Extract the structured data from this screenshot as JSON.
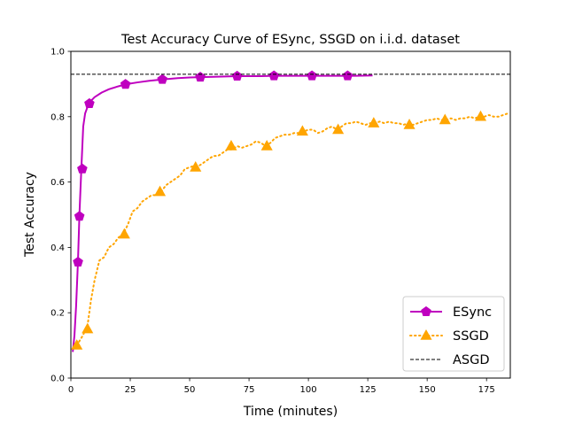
{
  "chart_data": {
    "type": "line",
    "title": "Test Accuracy Curve of ESync, SSGD on i.i.d. dataset",
    "xlabel": "Time (minutes)",
    "ylabel": "Test Accuracy",
    "xlim": [
      0,
      185
    ],
    "ylim": [
      0.0,
      1.0
    ],
    "xticks": [
      "0",
      "25",
      "50",
      "75",
      "100",
      "125",
      "150",
      "175"
    ],
    "yticks": [
      "0.0",
      "0.2",
      "0.4",
      "0.6",
      "0.8",
      "1.0"
    ],
    "grid": false,
    "legend_position": "lower-right",
    "series": [
      {
        "name": "ESync",
        "color": "#bf00bf",
        "style": "solid",
        "marker": "pentagon",
        "x": [
          0.8,
          1.5,
          2.2,
          3.0,
          3.6,
          4.4,
          5.2,
          6.0,
          7.0,
          8.0,
          10,
          13,
          16,
          20,
          23,
          28,
          33,
          38.5,
          45,
          50,
          54.5,
          60,
          65,
          70,
          75,
          80,
          85.5,
          90,
          95,
          101.5,
          105,
          110,
          116.5,
          120,
          127
        ],
        "y": [
          0.08,
          0.13,
          0.22,
          0.36,
          0.5,
          0.64,
          0.77,
          0.81,
          0.83,
          0.845,
          0.86,
          0.874,
          0.884,
          0.893,
          0.899,
          0.905,
          0.91,
          0.914,
          0.918,
          0.92,
          0.921,
          0.922,
          0.923,
          0.924,
          0.924,
          0.924,
          0.925,
          0.925,
          0.925,
          0.925,
          0.925,
          0.925,
          0.925,
          0.925,
          0.926
        ],
        "marker_x": [
          3.0,
          3.6,
          4.8,
          7.8,
          23,
          38.5,
          54.5,
          70,
          85.5,
          101.5,
          116.5
        ],
        "marker_y": [
          0.355,
          0.495,
          0.64,
          0.84,
          0.899,
          0.914,
          0.921,
          0.924,
          0.925,
          0.925,
          0.925
        ]
      },
      {
        "name": "SSGD",
        "color": "#ffa500",
        "style": "dotted",
        "marker": "triangle",
        "x": [
          2.5,
          5,
          7,
          8.5,
          10,
          12,
          14,
          16,
          18,
          20,
          22,
          24,
          26,
          28,
          30,
          32,
          34,
          36,
          38,
          40,
          42,
          44,
          46,
          48,
          50,
          52,
          54,
          56,
          58,
          60,
          62,
          64,
          66,
          68,
          70,
          72,
          74,
          76,
          78,
          80,
          82,
          84,
          86,
          88,
          90,
          92,
          94,
          96,
          98,
          100,
          102,
          104,
          106,
          108,
          110,
          112,
          114,
          116,
          118,
          120,
          122,
          124,
          126,
          128,
          130,
          132,
          134,
          136,
          138,
          140,
          142,
          144,
          146,
          148,
          150,
          152,
          154,
          156,
          158,
          160,
          162,
          164,
          166,
          168,
          170,
          172,
          174,
          176,
          178,
          180,
          182,
          184
        ],
        "y": [
          0.1,
          0.13,
          0.16,
          0.24,
          0.3,
          0.36,
          0.37,
          0.4,
          0.41,
          0.43,
          0.44,
          0.47,
          0.51,
          0.52,
          0.54,
          0.55,
          0.56,
          0.56,
          0.57,
          0.59,
          0.6,
          0.61,
          0.62,
          0.64,
          0.645,
          0.65,
          0.65,
          0.66,
          0.67,
          0.68,
          0.68,
          0.69,
          0.7,
          0.7,
          0.71,
          0.705,
          0.71,
          0.715,
          0.725,
          0.72,
          0.71,
          0.72,
          0.735,
          0.74,
          0.745,
          0.745,
          0.75,
          0.75,
          0.755,
          0.76,
          0.76,
          0.75,
          0.755,
          0.765,
          0.77,
          0.76,
          0.77,
          0.78,
          0.78,
          0.785,
          0.78,
          0.775,
          0.78,
          0.78,
          0.785,
          0.78,
          0.785,
          0.78,
          0.78,
          0.775,
          0.78,
          0.775,
          0.78,
          0.785,
          0.79,
          0.79,
          0.795,
          0.79,
          0.79,
          0.795,
          0.79,
          0.795,
          0.795,
          0.8,
          0.795,
          0.8,
          0.8,
          0.805,
          0.8,
          0.8,
          0.805,
          0.81
        ],
        "marker_x": [
          2.5,
          7,
          22.5,
          37.5,
          52.5,
          67.5,
          82.5,
          97.5,
          112.5,
          127.5,
          142.5,
          157.5,
          172.5
        ],
        "marker_y": [
          0.1,
          0.15,
          0.44,
          0.57,
          0.645,
          0.71,
          0.71,
          0.755,
          0.76,
          0.78,
          0.775,
          0.79,
          0.8
        ]
      },
      {
        "name": "ASGD",
        "color": "#000000",
        "style": "dashed",
        "marker": "none",
        "x": [
          0,
          185
        ],
        "y": [
          0.93,
          0.93
        ]
      }
    ]
  }
}
